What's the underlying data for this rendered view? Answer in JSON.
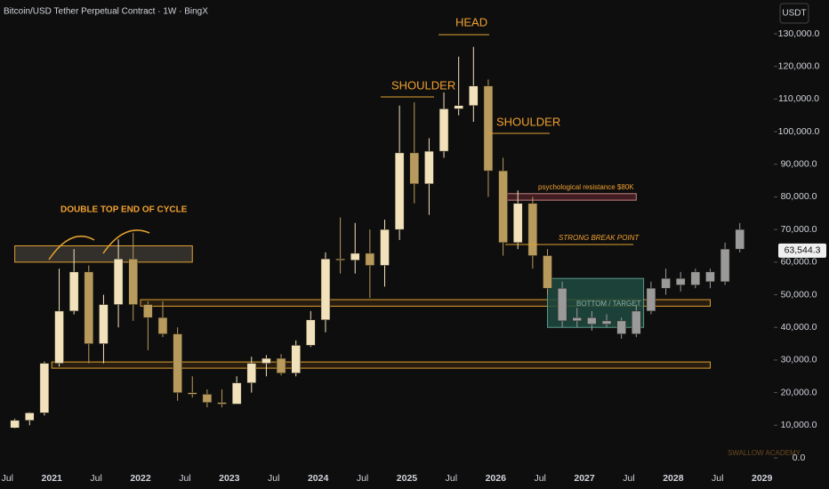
{
  "chart_data": {
    "type": "candlestick",
    "title": "Bitcoin/USD Tether Perpetual Contract · 1W · BingX",
    "currency": "USDT",
    "watermark": "SWALLOW ACADEMY",
    "x": [
      "2020-07",
      "2020-09",
      "2020-11",
      "2021-01",
      "2021-03",
      "2021-05",
      "2021-07",
      "2021-09",
      "2021-11",
      "2022-01",
      "2022-03",
      "2022-05",
      "2022-07",
      "2022-09",
      "2022-11",
      "2023-01",
      "2023-03",
      "2023-05",
      "2023-07",
      "2023-09",
      "2023-11",
      "2024-01",
      "2024-03",
      "2024-05",
      "2024-07",
      "2024-09",
      "2024-11",
      "2025-01",
      "2025-03",
      "2025-05",
      "2025-07",
      "2025-09",
      "2025-11",
      "2026-01",
      "2026-03",
      "2026-05",
      "2026-07",
      "2026-09",
      "2026-11",
      "2027-01",
      "2027-03",
      "2027-05",
      "2027-07",
      "2027-09",
      "2027-11",
      "2028-01",
      "2028-03",
      "2028-05",
      "2028-07",
      "2028-09"
    ],
    "open": [
      9200,
      11500,
      13800,
      29000,
      45000,
      57000,
      35000,
      47000,
      61000,
      47000,
      43000,
      38000,
      20000,
      19500,
      17000,
      16500,
      23000,
      29000,
      30500,
      26000,
      34500,
      42300,
      61000,
      60600,
      62700,
      59000,
      70000,
      93500,
      84000,
      94000,
      107000,
      108000,
      114000,
      88000,
      66000,
      78000,
      62000,
      52000,
      42000,
      43000,
      41000,
      42000,
      38000,
      45000,
      52000,
      55000,
      53000,
      57000,
      54000,
      64000
    ],
    "high": [
      12000,
      14000,
      29500,
      58000,
      64000,
      59000,
      50000,
      67000,
      69000,
      48000,
      48000,
      40000,
      25000,
      21000,
      21000,
      25000,
      31000,
      31500,
      31800,
      36000,
      45000,
      63000,
      73700,
      72000,
      70000,
      73000,
      108000,
      109000,
      98000,
      112000,
      123000,
      126000,
      116000,
      92000,
      82000,
      80000,
      64000,
      54000,
      46000,
      45000,
      44000,
      43000,
      47000,
      54000,
      58000,
      57000,
      58000,
      58000,
      66000,
      72000
    ],
    "low": [
      9000,
      10000,
      13000,
      28000,
      44000,
      29000,
      29000,
      40000,
      42000,
      33000,
      37000,
      17500,
      18500,
      15500,
      15500,
      16500,
      20000,
      25000,
      25300,
      25000,
      34000,
      38500,
      56500,
      56500,
      49000,
      52500,
      66800,
      78000,
      74500,
      92000,
      105000,
      103000,
      80000,
      62000,
      64000,
      58000,
      50000,
      40000,
      40000,
      39000,
      40000,
      36500,
      37000,
      44000,
      50000,
      51000,
      52000,
      52000,
      53000,
      63000
    ],
    "close": [
      11500,
      13800,
      29000,
      45000,
      57000,
      35000,
      47000,
      61000,
      47000,
      43000,
      38000,
      20000,
      19500,
      17000,
      16500,
      23000,
      29000,
      30500,
      26000,
      34500,
      42300,
      61000,
      60600,
      62700,
      59000,
      70000,
      93500,
      84000,
      94000,
      107000,
      108000,
      114000,
      88000,
      66000,
      78000,
      62000,
      52000,
      42000,
      43000,
      41000,
      42000,
      38000,
      45000,
      52000,
      55000,
      53000,
      57000,
      54000,
      64000,
      70000
    ],
    "up_color": "#f2e2bc",
    "down_color": "#b89a5c",
    "projection_color": "#9a9a9a",
    "projection_from": "2026-09",
    "last_price": {
      "value": 63544.3,
      "label": "63,544.3"
    },
    "xlim": [
      "2020-06",
      "2029-02"
    ],
    "ylim": [
      0,
      130000
    ],
    "xticks": [
      {
        "value": "2020-07",
        "label": "Jul"
      },
      {
        "value": "2021-01",
        "label": "2021"
      },
      {
        "value": "2021-07",
        "label": "Jul"
      },
      {
        "value": "2022-01",
        "label": "2022"
      },
      {
        "value": "2022-07",
        "label": "Jul"
      },
      {
        "value": "2023-01",
        "label": "2023"
      },
      {
        "value": "2023-07",
        "label": "Jul"
      },
      {
        "value": "2024-01",
        "label": "2024"
      },
      {
        "value": "2024-07",
        "label": "Jul"
      },
      {
        "value": "2025-01",
        "label": "2025"
      },
      {
        "value": "2025-07",
        "label": "Jul"
      },
      {
        "value": "2026-01",
        "label": "2026"
      },
      {
        "value": "2026-07",
        "label": "Jul"
      },
      {
        "value": "2027-01",
        "label": "2027"
      },
      {
        "value": "2027-07",
        "label": "Jul"
      },
      {
        "value": "2028-01",
        "label": "2028"
      },
      {
        "value": "2028-07",
        "label": "Jul"
      },
      {
        "value": "2029-01",
        "label": "2029"
      }
    ],
    "yticks": [
      {
        "value": 0,
        "label": "0.0"
      },
      {
        "value": 10000,
        "label": "10,000.0"
      },
      {
        "value": 20000,
        "label": "20,000.0"
      },
      {
        "value": 30000,
        "label": "30,000.0"
      },
      {
        "value": 40000,
        "label": "40,000.0"
      },
      {
        "value": 50000,
        "label": "50,000.0"
      },
      {
        "value": 60000,
        "label": "60,000.0"
      },
      {
        "value": 70000,
        "label": "70,000.0"
      },
      {
        "value": 80000,
        "label": "80,000.0"
      },
      {
        "value": 90000,
        "label": "90,000.0"
      },
      {
        "value": 100000,
        "label": "100,000.0"
      },
      {
        "value": 110000,
        "label": "110,000.0"
      },
      {
        "value": 120000,
        "label": "120,000.0"
      },
      {
        "value": 130000,
        "label": "130,000.0"
      }
    ],
    "zones": [
      {
        "x": [
          "2020-08",
          "2022-08"
        ],
        "y": [
          60000,
          65000
        ],
        "color": "#3a3530",
        "stroke": "#e0a030"
      },
      {
        "x": [
          "2022-01",
          "2028-06"
        ],
        "y": [
          46500,
          48500
        ],
        "color": "#2a2010",
        "stroke": "#e0a030"
      },
      {
        "x": [
          "2021-01",
          "2028-06"
        ],
        "y": [
          27500,
          29400
        ],
        "color": "#2a2010",
        "stroke": "#e0a030"
      },
      {
        "x": [
          "2026-02",
          "2027-08"
        ],
        "y": [
          79000,
          81000
        ],
        "color": "#4a2025",
        "stroke": "#c08080"
      },
      {
        "x": [
          "2026-08",
          "2027-09"
        ],
        "y": [
          40000,
          55000
        ],
        "color": "#1f4a40",
        "stroke": "#5a9a8a"
      }
    ],
    "annotations": [
      "DOUBLE TOP END OF CYCLE",
      "SHOULDER",
      "HEAD",
      "SHOULDER",
      "psychological resistance $80K",
      "STRONG BREAK POINT",
      "BOTTOM / TARGET"
    ]
  }
}
